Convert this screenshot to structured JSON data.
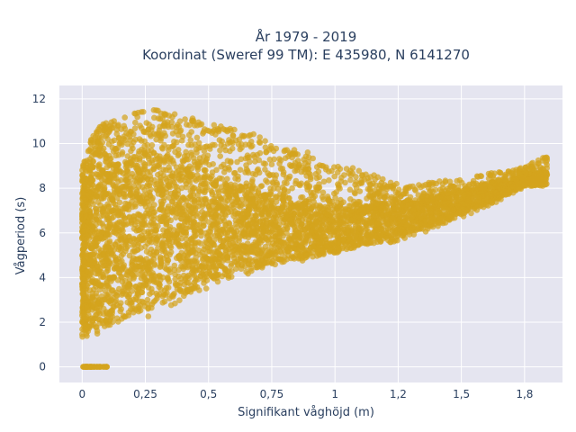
{
  "chart_data": {
    "type": "scatter",
    "title_line1": "År 1979 - 2019",
    "title_line2": "Koordinat (Sweref 99 TM): E 435980, N 6141270",
    "xlabel": "Signifikant våghöjd (m)",
    "ylabel": "Vågperiod (s)",
    "xlim": [
      -0.09,
      1.9
    ],
    "ylim": [
      -0.7,
      12.6
    ],
    "x_ticks": [
      {
        "value": 0,
        "label": "0"
      },
      {
        "value": 0.25,
        "label": "0,25"
      },
      {
        "value": 0.5,
        "label": "0,5"
      },
      {
        "value": 0.75,
        "label": "0,75"
      },
      {
        "value": 1,
        "label": "1"
      },
      {
        "value": 1.25,
        "label": "1,2"
      },
      {
        "value": 1.5,
        "label": "1,5"
      },
      {
        "value": 1.75,
        "label": "1,8"
      }
    ],
    "y_ticks": [
      {
        "value": 0,
        "label": "0"
      },
      {
        "value": 2,
        "label": "2"
      },
      {
        "value": 4,
        "label": "4"
      },
      {
        "value": 6,
        "label": "6"
      },
      {
        "value": 8,
        "label": "8"
      },
      {
        "value": 10,
        "label": "10"
      },
      {
        "value": 12,
        "label": "12"
      }
    ],
    "grid": true,
    "colors": {
      "marker": "#d4a31d",
      "plot_background": "#e5e5f0",
      "grid": "#ffffff",
      "text": "#2a3f5f"
    },
    "distribution": {
      "band_lower": [
        [
          0.0,
          1.2
        ],
        [
          0.25,
          2.2
        ],
        [
          0.5,
          3.5
        ],
        [
          0.75,
          4.4
        ],
        [
          1.0,
          5.0
        ],
        [
          1.25,
          5.6
        ],
        [
          1.5,
          6.6
        ],
        [
          1.75,
          8.0
        ],
        [
          1.83,
          8.6
        ]
      ],
      "band_upper": [
        [
          0.0,
          9.0
        ],
        [
          0.05,
          10.8
        ],
        [
          0.25,
          11.6
        ],
        [
          0.5,
          11.0
        ],
        [
          0.75,
          10.2
        ],
        [
          1.0,
          9.2
        ],
        [
          1.25,
          8.2
        ],
        [
          1.5,
          8.4
        ],
        [
          1.75,
          9.0
        ],
        [
          1.83,
          9.4
        ]
      ],
      "dense_core_lower": [
        [
          0.0,
          1.5
        ],
        [
          0.25,
          2.5
        ],
        [
          0.5,
          3.8
        ],
        [
          0.75,
          4.6
        ],
        [
          1.0,
          5.1
        ],
        [
          1.25,
          5.8
        ],
        [
          1.5,
          6.8
        ],
        [
          1.75,
          8.1
        ]
      ],
      "dense_core_upper": [
        [
          0.0,
          8.5
        ],
        [
          0.25,
          9.8
        ],
        [
          0.5,
          8.5
        ],
        [
          0.75,
          7.8
        ],
        [
          1.0,
          7.2
        ],
        [
          1.25,
          7.4
        ],
        [
          1.5,
          7.9
        ],
        [
          1.75,
          8.7
        ]
      ],
      "zero_period_points": {
        "x_range": [
          0.0,
          0.1
        ],
        "y": 0
      }
    }
  }
}
